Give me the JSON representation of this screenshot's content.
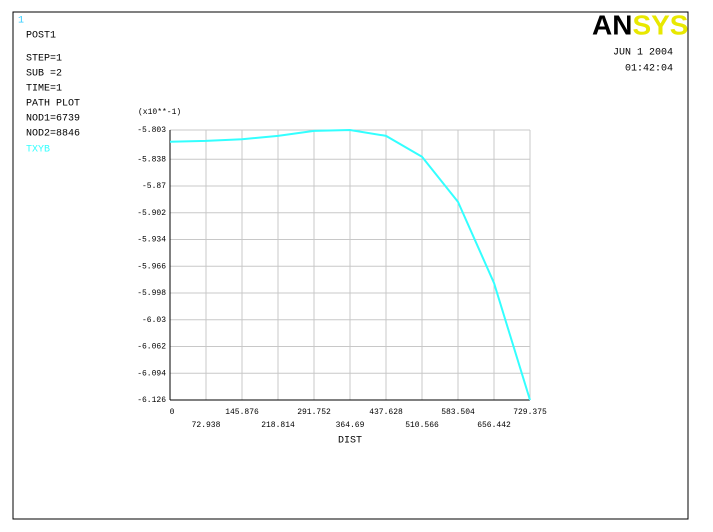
{
  "chart_data": {
    "type": "line",
    "plot_number": "1",
    "logo": "ANSYS",
    "date": "JUN  1 2004",
    "time": "01:42:04",
    "annotations": [
      "POST1",
      "STEP=1",
      "SUB =2",
      "TIME=1",
      "PATH PLOT",
      "NOD1=6739",
      "NOD2=8846"
    ],
    "y_multiplier": "(x10**-1)",
    "x_label": "DIST",
    "x": [
      0,
      72.938,
      145.876,
      218.814,
      291.752,
      364.69,
      437.628,
      510.566,
      583.504,
      656.442,
      729.375
    ],
    "series": [
      {
        "name": "TXYB",
        "color": "#33ffff",
        "values": [
          -5.817,
          -5.816,
          -5.814,
          -5.81,
          -5.804,
          -5.803,
          -5.81,
          -5.835,
          -5.889,
          -5.986,
          -6.126
        ]
      }
    ],
    "xlim": [
      0,
      729.375
    ],
    "xticks": [
      0,
      72.938,
      145.876,
      218.814,
      291.752,
      364.69,
      437.628,
      510.566,
      583.504,
      656.442,
      729.375
    ],
    "ylim": [
      -6.126,
      -5.803
    ],
    "yticks": [
      -5.803,
      -5.838,
      -5.87,
      -5.902,
      -5.934,
      -5.966,
      -5.998,
      -6.03,
      -6.062,
      -6.094,
      -6.126
    ],
    "grid": true
  }
}
